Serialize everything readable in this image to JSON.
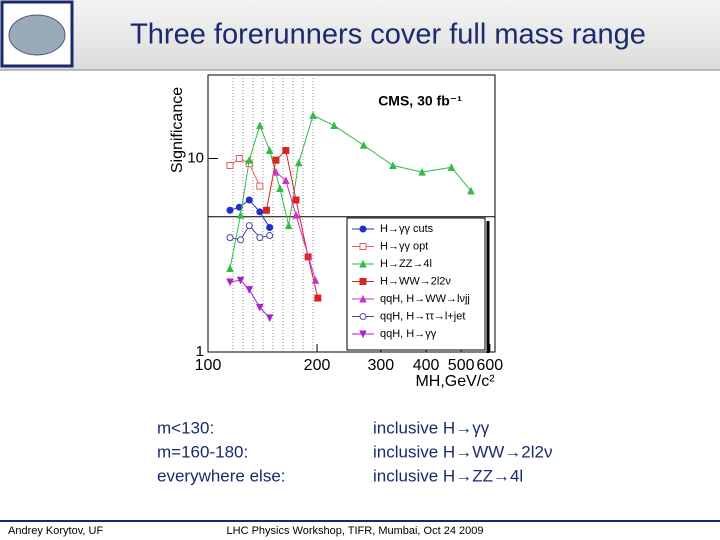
{
  "slide": {
    "title": "Three forerunners cover full mass range",
    "notes_left": [
      "m<130:",
      "m=160-180:",
      "everywhere else:"
    ],
    "notes_right": [
      "inclusive H→γγ",
      "inclusive H→WW→2l2ν",
      "inclusive H→ZZ→4l"
    ],
    "footer_left": "Andrey Korytov, UF",
    "footer_center": "LHC Physics Workshop, TIFR, Mumbai, Oct 24 2009"
  },
  "chart_data": {
    "type": "line",
    "title": "CMS, 30 fb⁻¹",
    "x_label": "MH,GeV/c²",
    "y_label": "Significance",
    "log_x": true,
    "log_y": true,
    "xlim": [
      100,
      620
    ],
    "ylim": [
      1,
      27
    ],
    "xticks": [
      100,
      200,
      300,
      400,
      500,
      600
    ],
    "yticks": [
      1,
      10
    ],
    "reference_line": 5,
    "series": [
      {
        "name": "H→γγ cuts",
        "color": "#1f2fcc",
        "marker": "circle",
        "x": [
          115,
          122,
          130,
          139,
          148
        ],
        "values": [
          5.4,
          5.6,
          6.1,
          5.3,
          4.4
        ]
      },
      {
        "name": "H→γγ opt",
        "color": "#e06060",
        "marker": "square-open",
        "x": [
          115,
          122,
          130,
          139
        ],
        "values": [
          9.2,
          10,
          9.4,
          7.2
        ]
      },
      {
        "name": "H→ZZ→4l",
        "color": "#33bb44",
        "marker": "triangle",
        "x": [
          115,
          123,
          130,
          139,
          148,
          158,
          167,
          178,
          195,
          223,
          269,
          324,
          390,
          470,
          532
        ],
        "values": [
          2.7,
          5.1,
          9.8,
          14.8,
          11,
          7,
          4.5,
          9.5,
          16.7,
          14.8,
          11.7,
          9.2,
          8.5,
          9.0,
          6.8
        ]
      },
      {
        "name": "H→WW→2l2ν",
        "color": "#dd2222",
        "marker": "square",
        "x": [
          145,
          154,
          164,
          175,
          189,
          201
        ],
        "values": [
          5.4,
          9.8,
          11,
          6.1,
          3.1,
          1.9
        ]
      },
      {
        "name": "qqH, H→WW→lνjj",
        "color": "#cc33cc",
        "marker": "triangle",
        "x": [
          154,
          164,
          175,
          198
        ],
        "values": [
          8.5,
          7.7,
          5.1,
          2.35
        ]
      },
      {
        "name": "qqH, H→ττ→l+jet",
        "color": "#4a4aa8",
        "marker": "circle-open",
        "x": [
          115,
          123,
          130,
          139,
          148
        ],
        "values": [
          3.9,
          3.8,
          4.5,
          3.9,
          4.0
        ]
      },
      {
        "name": "qqH, H→γγ",
        "color": "#aa22cc",
        "marker": "triangle-down",
        "x": [
          115,
          123,
          130,
          139,
          148
        ],
        "values": [
          2.3,
          2.35,
          2.1,
          1.7,
          1.5
        ]
      }
    ]
  }
}
